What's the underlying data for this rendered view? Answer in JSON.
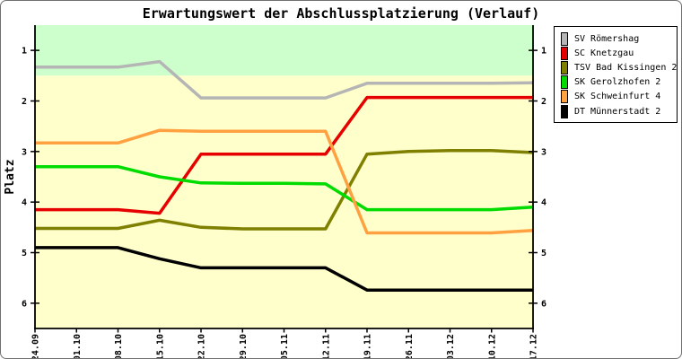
{
  "title": "Erwartungswert der Abschlussplatzierung (Verlauf)",
  "chart_data": {
    "type": "line",
    "title": "Erwartungswert der Abschlussplatzierung (Verlauf)",
    "xlabel": "",
    "ylabel": "Platz",
    "x_categories": [
      "24.09",
      "01.10",
      "08.10",
      "15.10",
      "22.10",
      "29.10",
      "05.11",
      "12.11",
      "19.11",
      "26.11",
      "03.12",
      "10.12",
      "17.12"
    ],
    "y_ticks": [
      1,
      2,
      3,
      4,
      5,
      6
    ],
    "y_range": [
      0.5,
      6.5
    ],
    "y_axis_note": "place 1 at top, axis increases downward, labels on both sides",
    "grid": "off",
    "legend_position": "outside-top-right",
    "bands": [
      {
        "name": "promotion-zone",
        "from": 0.5,
        "to": 1.5,
        "color": "#CCFFCC"
      },
      {
        "name": "mid-table-zone",
        "from": 1.5,
        "to": 6.5,
        "color": "#FFFFCC"
      }
    ],
    "series": [
      {
        "name": "SV Römershag",
        "color": "#B5B5B5",
        "values": [
          1.33,
          1.33,
          1.33,
          1.22,
          1.94,
          1.94,
          1.94,
          1.94,
          1.65,
          1.65,
          1.65,
          1.65,
          1.64
        ]
      },
      {
        "name": "SC Knetzgau",
        "color": "#E60000",
        "values": [
          4.15,
          4.15,
          4.15,
          4.22,
          3.05,
          3.05,
          3.05,
          3.05,
          1.93,
          1.93,
          1.93,
          1.93,
          1.93
        ]
      },
      {
        "name": "TSV Bad Kissingen 2",
        "color": "#7F7F00",
        "values": [
          4.52,
          4.52,
          4.52,
          4.36,
          4.5,
          4.53,
          4.53,
          4.53,
          3.05,
          3.0,
          2.98,
          2.98,
          3.02
        ]
      },
      {
        "name": "SK Gerolzhofen 2",
        "color": "#00DC00",
        "values": [
          3.3,
          3.3,
          3.3,
          3.5,
          3.62,
          3.63,
          3.63,
          3.64,
          4.15,
          4.15,
          4.15,
          4.15,
          4.1
        ]
      },
      {
        "name": "SK Schweinfurt 4",
        "color": "#FFA041",
        "values": [
          2.83,
          2.83,
          2.83,
          2.58,
          2.6,
          2.6,
          2.6,
          2.6,
          4.61,
          4.61,
          4.61,
          4.61,
          4.56
        ]
      },
      {
        "name": "DT Münnerstadt 2",
        "color": "#000000",
        "values": [
          4.9,
          4.9,
          4.9,
          5.12,
          5.3,
          5.3,
          5.3,
          5.3,
          5.74,
          5.74,
          5.74,
          5.74,
          5.74
        ]
      }
    ]
  }
}
